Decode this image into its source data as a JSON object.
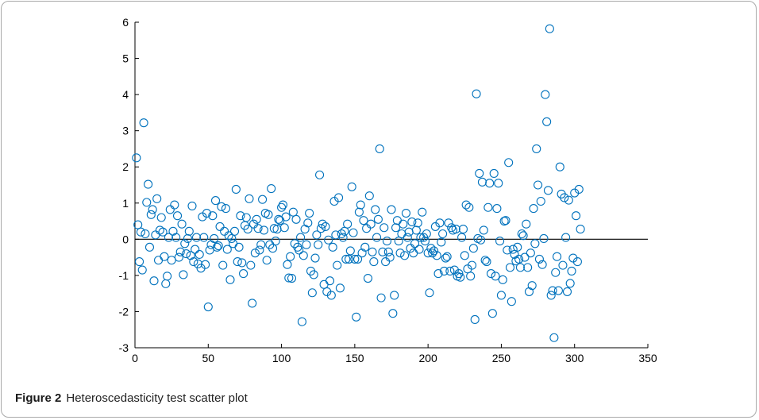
{
  "caption": {
    "label": "Figure 2",
    "text": "Heteroscedasticity test scatter plot"
  },
  "colors": {
    "marker": "#0072bd",
    "axis": "#000000",
    "zero_line": "#000000"
  },
  "chart_data": {
    "type": "scatter",
    "title": "",
    "xlabel": "",
    "ylabel": "",
    "xlim": [
      0,
      350
    ],
    "ylim": [
      -3,
      6
    ],
    "xticks": [
      0,
      50,
      100,
      150,
      200,
      250,
      300,
      350
    ],
    "yticks": [
      -3,
      -2,
      -1,
      0,
      1,
      2,
      3,
      4,
      5,
      6
    ],
    "reference_line": {
      "y": 0,
      "x_from": 0,
      "x_to": 350
    },
    "grid": false,
    "marker": "open-circle",
    "series": [
      {
        "points": [
          [
            1,
            2.25
          ],
          [
            2,
            0.4
          ],
          [
            3,
            -0.62
          ],
          [
            4,
            0.2
          ],
          [
            5,
            -0.85
          ],
          [
            6,
            3.22
          ],
          [
            7,
            0.15
          ],
          [
            8,
            1.02
          ],
          [
            9,
            1.52
          ],
          [
            10,
            -0.22
          ],
          [
            11,
            0.68
          ],
          [
            12,
            0.82
          ],
          [
            13,
            -1.15
          ],
          [
            14,
            0.12
          ],
          [
            15,
            1.12
          ],
          [
            16,
            -0.58
          ],
          [
            17,
            0.25
          ],
          [
            18,
            0.6
          ],
          [
            19,
            0.2
          ],
          [
            20,
            -0.48
          ],
          [
            21,
            -1.23
          ],
          [
            22,
            -1.02
          ],
          [
            23,
            0.05
          ],
          [
            24,
            0.82
          ],
          [
            25,
            -0.58
          ],
          [
            26,
            0.22
          ],
          [
            27,
            0.95
          ],
          [
            28,
            0.05
          ],
          [
            29,
            0.65
          ],
          [
            30,
            -0.5
          ],
          [
            31,
            -0.35
          ],
          [
            32,
            0.42
          ],
          [
            33,
            -0.98
          ],
          [
            34,
            -0.12
          ],
          [
            35,
            -0.4
          ],
          [
            36,
            0.02
          ],
          [
            37,
            0.22
          ],
          [
            38,
            -0.45
          ],
          [
            39,
            0.92
          ],
          [
            40,
            -0.62
          ],
          [
            41,
            -0.28
          ],
          [
            42,
            0.05
          ],
          [
            43,
            -0.68
          ],
          [
            44,
            -0.42
          ],
          [
            45,
            -0.8
          ],
          [
            46,
            0.62
          ],
          [
            47,
            0.05
          ],
          [
            48,
            -0.7
          ],
          [
            49,
            0.72
          ],
          [
            50,
            -1.87
          ],
          [
            51,
            -0.3
          ],
          [
            52,
            -0.15
          ],
          [
            53,
            0.65
          ],
          [
            54,
            0.02
          ],
          [
            55,
            1.07
          ],
          [
            56,
            -0.22
          ],
          [
            57,
            -0.18
          ],
          [
            58,
            0.35
          ],
          [
            59,
            0.9
          ],
          [
            60,
            -0.72
          ],
          [
            61,
            0.22
          ],
          [
            62,
            0.85
          ],
          [
            63,
            -0.28
          ],
          [
            64,
            0.1
          ],
          [
            65,
            -1.12
          ],
          [
            66,
            0.02
          ],
          [
            67,
            -0.12
          ],
          [
            68,
            0.22
          ],
          [
            69,
            1.38
          ],
          [
            70,
            -0.62
          ],
          [
            71,
            -0.22
          ],
          [
            72,
            0.65
          ],
          [
            73,
            -0.65
          ],
          [
            74,
            -0.95
          ],
          [
            75,
            0.38
          ],
          [
            76,
            0.6
          ],
          [
            77,
            0.28
          ],
          [
            78,
            1.12
          ],
          [
            79,
            -0.72
          ],
          [
            80,
            -1.77
          ],
          [
            81,
            0.42
          ],
          [
            82,
            -0.38
          ],
          [
            83,
            0.55
          ],
          [
            84,
            0.3
          ],
          [
            85,
            -0.3
          ],
          [
            86,
            -0.15
          ],
          [
            87,
            1.1
          ],
          [
            88,
            0.25
          ],
          [
            89,
            0.72
          ],
          [
            90,
            -0.58
          ],
          [
            91,
            0.68
          ],
          [
            92,
            -0.15
          ],
          [
            93,
            1.4
          ],
          [
            94,
            -0.25
          ],
          [
            95,
            0.3
          ],
          [
            96,
            -0.05
          ],
          [
            97,
            0.28
          ],
          [
            98,
            0.55
          ],
          [
            99,
            0.52
          ],
          [
            100,
            0.88
          ],
          [
            101,
            0.95
          ],
          [
            102,
            0.32
          ],
          [
            103,
            0.62
          ],
          [
            104,
            -0.7
          ],
          [
            105,
            -1.07
          ],
          [
            106,
            -0.48
          ],
          [
            107,
            -1.08
          ],
          [
            108,
            0.75
          ],
          [
            109,
            -0.12
          ],
          [
            110,
            0.55
          ],
          [
            111,
            -0.22
          ],
          [
            112,
            -0.3
          ],
          [
            113,
            0.05
          ],
          [
            114,
            -2.28
          ],
          [
            115,
            -0.45
          ],
          [
            116,
            0.28
          ],
          [
            117,
            -0.15
          ],
          [
            118,
            0.45
          ],
          [
            119,
            0.72
          ],
          [
            120,
            -0.88
          ],
          [
            121,
            -1.48
          ],
          [
            122,
            -0.98
          ],
          [
            123,
            -0.52
          ],
          [
            124,
            0.12
          ],
          [
            125,
            -0.15
          ],
          [
            126,
            1.78
          ],
          [
            127,
            0.3
          ],
          [
            128,
            0.42
          ],
          [
            129,
            -1.25
          ],
          [
            130,
            0.35
          ],
          [
            131,
            -1.45
          ],
          [
            132,
            -0.02
          ],
          [
            133,
            -1.15
          ],
          [
            134,
            -1.55
          ],
          [
            135,
            -0.22
          ],
          [
            136,
            1.05
          ],
          [
            137,
            0.12
          ],
          [
            138,
            -0.72
          ],
          [
            139,
            1.15
          ],
          [
            140,
            -1.35
          ],
          [
            141,
            0.15
          ],
          [
            142,
            0.05
          ],
          [
            143,
            0.22
          ],
          [
            144,
            -0.55
          ],
          [
            145,
            0.42
          ],
          [
            146,
            -0.55
          ],
          [
            147,
            -0.32
          ],
          [
            148,
            1.45
          ],
          [
            149,
            0.18
          ],
          [
            150,
            -0.55
          ],
          [
            151,
            -2.15
          ],
          [
            152,
            -0.55
          ],
          [
            153,
            0.75
          ],
          [
            154,
            0.95
          ],
          [
            155,
            -0.38
          ],
          [
            156,
            0.52
          ],
          [
            157,
            -0.22
          ],
          [
            158,
            0.3
          ],
          [
            159,
            -1.08
          ],
          [
            160,
            1.2
          ],
          [
            161,
            0.42
          ],
          [
            162,
            -0.35
          ],
          [
            163,
            -0.62
          ],
          [
            164,
            0.82
          ],
          [
            165,
            0.05
          ],
          [
            166,
            0.55
          ],
          [
            167,
            2.5
          ],
          [
            168,
            -1.62
          ],
          [
            169,
            -0.35
          ],
          [
            170,
            0.32
          ],
          [
            171,
            -0.62
          ],
          [
            172,
            -0.05
          ],
          [
            173,
            -0.35
          ],
          [
            174,
            -0.5
          ],
          [
            175,
            0.82
          ],
          [
            176,
            -2.05
          ],
          [
            177,
            -1.55
          ],
          [
            178,
            0.32
          ],
          [
            179,
            0.52
          ],
          [
            180,
            -0.05
          ],
          [
            181,
            -0.38
          ],
          [
            182,
            0.15
          ],
          [
            183,
            0.42
          ],
          [
            184,
            -0.45
          ],
          [
            185,
            0.72
          ],
          [
            186,
            0.05
          ],
          [
            187,
            0.2
          ],
          [
            188,
            -0.25
          ],
          [
            189,
            0.48
          ],
          [
            190,
            -0.38
          ],
          [
            191,
            -0.12
          ],
          [
            192,
            0.25
          ],
          [
            193,
            0.45
          ],
          [
            194,
            -0.28
          ],
          [
            195,
            0.05
          ],
          [
            196,
            0.75
          ],
          [
            197,
            0.05
          ],
          [
            198,
            -0.05
          ],
          [
            199,
            0.15
          ],
          [
            200,
            -0.38
          ],
          [
            201,
            -1.48
          ],
          [
            202,
            -0.25
          ],
          [
            203,
            -0.38
          ],
          [
            204,
            -0.32
          ],
          [
            205,
            0.35
          ],
          [
            206,
            -0.45
          ],
          [
            207,
            -0.95
          ],
          [
            208,
            0.45
          ],
          [
            209,
            -0.08
          ],
          [
            210,
            0.15
          ],
          [
            211,
            -0.88
          ],
          [
            212,
            -0.52
          ],
          [
            213,
            -0.48
          ],
          [
            214,
            0.45
          ],
          [
            215,
            -0.88
          ],
          [
            216,
            0.32
          ],
          [
            217,
            0.25
          ],
          [
            218,
            -0.85
          ],
          [
            219,
            0.28
          ],
          [
            220,
            -1.02
          ],
          [
            221,
            -0.95
          ],
          [
            222,
            -1.05
          ],
          [
            223,
            0.05
          ],
          [
            224,
            0.28
          ],
          [
            225,
            -0.45
          ],
          [
            226,
            0.95
          ],
          [
            227,
            -0.82
          ],
          [
            228,
            0.88
          ],
          [
            229,
            -1.02
          ],
          [
            230,
            -0.72
          ],
          [
            231,
            -0.25
          ],
          [
            232,
            -2.22
          ],
          [
            233,
            4.02
          ],
          [
            234,
            0.02
          ],
          [
            235,
            1.82
          ],
          [
            236,
            -0.02
          ],
          [
            237,
            1.58
          ],
          [
            238,
            0.25
          ],
          [
            239,
            -0.58
          ],
          [
            240,
            -0.62
          ],
          [
            241,
            0.88
          ],
          [
            242,
            1.55
          ],
          [
            243,
            -0.95
          ],
          [
            244,
            -2.05
          ],
          [
            245,
            1.82
          ],
          [
            246,
            -1.02
          ],
          [
            247,
            0.85
          ],
          [
            248,
            1.55
          ],
          [
            249,
            -0.05
          ],
          [
            250,
            -1.55
          ],
          [
            251,
            -1.12
          ],
          [
            252,
            0.5
          ],
          [
            253,
            0.52
          ],
          [
            254,
            -0.3
          ],
          [
            255,
            2.12
          ],
          [
            256,
            -0.78
          ],
          [
            257,
            -1.72
          ],
          [
            258,
            -0.28
          ],
          [
            259,
            -0.42
          ],
          [
            260,
            -0.6
          ],
          [
            261,
            -0.22
          ],
          [
            262,
            -0.55
          ],
          [
            263,
            -0.78
          ],
          [
            264,
            0.15
          ],
          [
            265,
            0.1
          ],
          [
            266,
            -0.5
          ],
          [
            267,
            0.42
          ],
          [
            268,
            -0.78
          ],
          [
            269,
            -1.45
          ],
          [
            270,
            -0.38
          ],
          [
            271,
            -1.28
          ],
          [
            272,
            0.85
          ],
          [
            273,
            -0.12
          ],
          [
            274,
            2.5
          ],
          [
            275,
            1.5
          ],
          [
            276,
            -0.55
          ],
          [
            277,
            1.05
          ],
          [
            278,
            -0.7
          ],
          [
            279,
            0.02
          ],
          [
            280,
            4.0
          ],
          [
            281,
            3.25
          ],
          [
            282,
            1.35
          ],
          [
            283,
            5.82
          ],
          [
            284,
            -1.55
          ],
          [
            285,
            -1.42
          ],
          [
            286,
            -2.72
          ],
          [
            287,
            -0.92
          ],
          [
            288,
            -0.48
          ],
          [
            289,
            -1.42
          ],
          [
            290,
            2.0
          ],
          [
            291,
            1.25
          ],
          [
            292,
            -0.72
          ],
          [
            293,
            1.15
          ],
          [
            294,
            0.05
          ],
          [
            295,
            -1.45
          ],
          [
            296,
            1.08
          ],
          [
            297,
            -1.22
          ],
          [
            298,
            -0.88
          ],
          [
            299,
            -0.52
          ],
          [
            300,
            1.28
          ],
          [
            301,
            0.65
          ],
          [
            302,
            -0.62
          ],
          [
            303,
            1.38
          ],
          [
            304,
            0.28
          ]
        ]
      }
    ]
  }
}
